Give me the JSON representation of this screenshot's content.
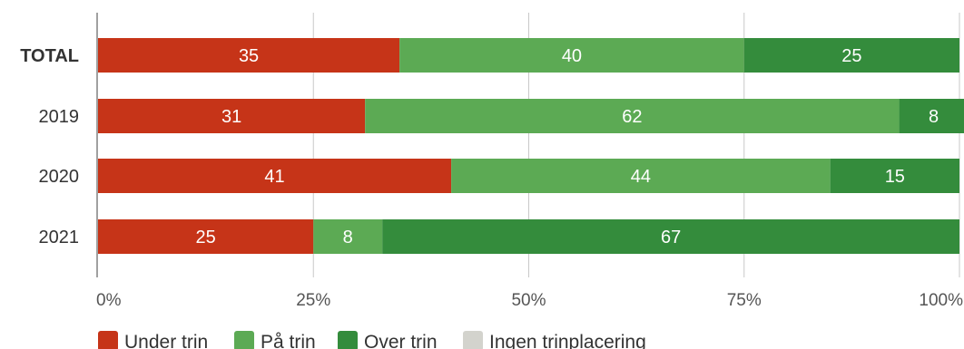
{
  "chart_data": {
    "type": "bar",
    "orientation": "horizontal",
    "stacked": true,
    "percent": true,
    "categories": [
      "TOTAL",
      "2019",
      "2020",
      "2021"
    ],
    "series": [
      {
        "name": "Under trin",
        "color": "#c63418",
        "values": [
          35,
          31,
          41,
          25
        ]
      },
      {
        "name": "På trin",
        "color": "#5caa54",
        "values": [
          40,
          62,
          44,
          8
        ]
      },
      {
        "name": "Over trin",
        "color": "#348c3c",
        "values": [
          25,
          8,
          15,
          67
        ]
      },
      {
        "name": "Ingen trinplacering",
        "color": "#d3d3cd",
        "values": [
          0,
          0,
          0,
          0
        ]
      }
    ],
    "xlim": [
      0,
      100
    ],
    "x_ticks": [
      "0%",
      "25%",
      "50%",
      "75%",
      "100%"
    ],
    "grid": true,
    "legend_position": "bottom-left",
    "title": "",
    "xlabel": "",
    "ylabel": ""
  }
}
